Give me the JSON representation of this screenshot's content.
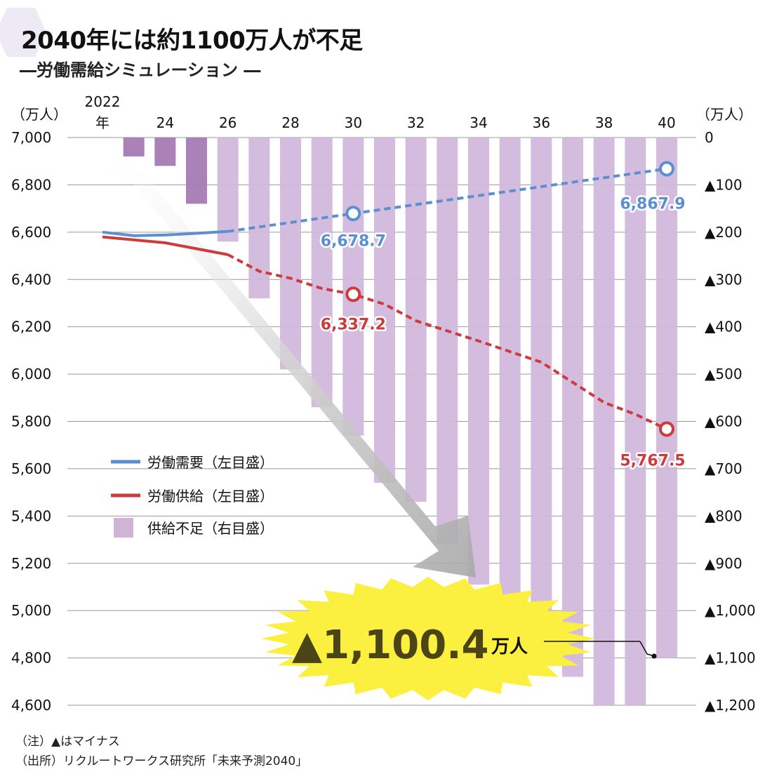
{
  "header": {
    "title": "2040年には約1100万人が不足",
    "subtitle": "―労働需給シミュレーション ―"
  },
  "footer": {
    "note": "（注）▲はマイナス",
    "source": "（出所）リクルートワークス研究所「未来予測2040」"
  },
  "chart_data": {
    "type": "bar+line",
    "left_axis": {
      "unit": "（万人）",
      "range": [
        4600,
        7000
      ],
      "ticks": [
        "7,000",
        "6,800",
        "6,600",
        "6,400",
        "6,200",
        "6,000",
        "5,800",
        "5,600",
        "5,400",
        "5,200",
        "5,000",
        "4,800",
        "4,600"
      ]
    },
    "right_axis": {
      "unit": "（万人）",
      "range": [
        0,
        -1200
      ],
      "ticks": [
        "0",
        "▲100",
        "▲200",
        "▲300",
        "▲400",
        "▲500",
        "▲600",
        "▲700",
        "▲800",
        "▲900",
        "▲1,000",
        "▲1,100",
        "▲1,200"
      ]
    },
    "x_axis": {
      "first_label": "2022",
      "first_label_suffix": "年",
      "tick_labels": [
        "24",
        "26",
        "28",
        "30",
        "32",
        "34",
        "36",
        "38",
        "40"
      ]
    },
    "years": [
      2022,
      2023,
      2024,
      2025,
      2026,
      2027,
      2028,
      2029,
      2030,
      2031,
      2032,
      2033,
      2034,
      2035,
      2036,
      2037,
      2038,
      2039,
      2040
    ],
    "shortage": [
      null,
      -40,
      -60,
      -140,
      -220,
      -340,
      -490,
      -570,
      -630,
      -730,
      -770,
      -860,
      -945,
      -1010,
      -1075,
      -1140,
      -1200,
      -1225,
      -1100.4
    ],
    "demand": [
      {
        "year": 2022,
        "value": 6600
      },
      {
        "year": 2023,
        "value": 6585
      },
      {
        "year": 2024,
        "value": 6588
      },
      {
        "year": 2025,
        "value": 6595
      },
      {
        "year": 2026,
        "value": 6603
      },
      {
        "year": 2030,
        "value": 6678.7
      },
      {
        "year": 2040,
        "value": 6867.9
      }
    ],
    "supply": [
      {
        "year": 2022,
        "value": 6580
      },
      {
        "year": 2024,
        "value": 6555
      },
      {
        "year": 2026,
        "value": 6505
      },
      {
        "year": 2027,
        "value": 6435
      },
      {
        "year": 2028,
        "value": 6405
      },
      {
        "year": 2029,
        "value": 6362
      },
      {
        "year": 2030,
        "value": 6337.2
      },
      {
        "year": 2031,
        "value": 6295
      },
      {
        "year": 2032,
        "value": 6225
      },
      {
        "year": 2034,
        "value": 6140
      },
      {
        "year": 2036,
        "value": 6050
      },
      {
        "year": 2038,
        "value": 5880
      },
      {
        "year": 2039,
        "value": 5830
      },
      {
        "year": 2040,
        "value": 5767.5
      }
    ],
    "demand_solid_until": 2026,
    "supply_solid_until": 2026,
    "annotations": {
      "demand_2030": "6,678.7",
      "demand_2040": "6,867.9",
      "supply_2030": "6,337.2",
      "supply_2040": "5,767.5",
      "callout_value": "▲1,100.4",
      "callout_unit": "万人"
    },
    "legend": [
      {
        "label": "労働需要（左目盛）",
        "color": "#5b8fd0",
        "kind": "line"
      },
      {
        "label": "労働供給（左目盛）",
        "color": "#cc3c3c",
        "kind": "line"
      },
      {
        "label": "供給不足（右目盛）",
        "color": "#cfb4d8",
        "kind": "box"
      }
    ],
    "colors": {
      "demand": "#5b8fd0",
      "supply": "#cc3c3c",
      "bar_light": "#d2b8dc",
      "bar_dark": "#a67bb3",
      "grid": "#999999",
      "burst": "#fbf040",
      "arrow": "#b9b9b9"
    }
  }
}
